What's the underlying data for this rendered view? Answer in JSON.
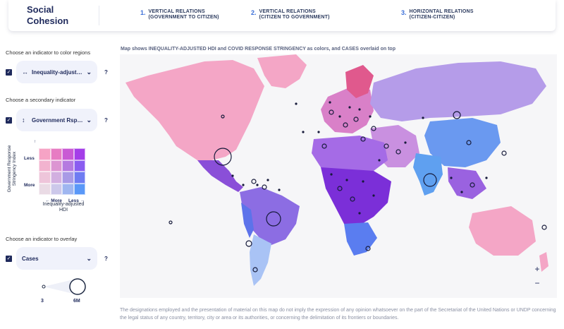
{
  "brand": {
    "line1": "Social",
    "line2": "Cohesion"
  },
  "nav_tabs": [
    {
      "num": "1.",
      "line1": "VERTICAL RELATIONS",
      "line2": "(GOVERNMENT TO CITIZEN)"
    },
    {
      "num": "2.",
      "line1": "VERTICAL RELATIONS",
      "line2": "(CITIZEN TO GOVERNMENT)"
    },
    {
      "num": "3.",
      "line1": "HORIZONTAL RELATIONS",
      "line2": "(CITIZEN-CITIZEN)"
    }
  ],
  "sidebar": {
    "color_prompt": "Choose an indicator to color regions",
    "color_select": {
      "icon": "↔",
      "label": "Inequality-adjust…",
      "help": "?"
    },
    "secondary_prompt": "Choose a secondary indicator",
    "secondary_select": {
      "icon": "↕",
      "label": "Government Rsp…",
      "help": "?"
    },
    "legend": {
      "y_title": "Government Response Stringency Index",
      "y_less": "Less",
      "y_more": "More",
      "x_more": "← More",
      "x_less": "Less →",
      "x_title": "Inequality-adjusted HDI",
      "colors": [
        [
          "#f6a3c5",
          "#e77cc3",
          "#c95ad4",
          "#a43ee8"
        ],
        [
          "#f2b3cf",
          "#dc95d2",
          "#b57ae0",
          "#8a5cf0"
        ],
        [
          "#eec5da",
          "#d2afe0",
          "#a89ae6",
          "#6f7cf2"
        ],
        [
          "#eadbe5",
          "#ccc8ea",
          "#9fb6f0",
          "#5a98f8"
        ]
      ]
    },
    "overlay_prompt": "Choose an indicator to overlay",
    "overlay_select": {
      "label": "Cases",
      "help": "?"
    },
    "size_legend": {
      "min": "3",
      "max": "6M"
    }
  },
  "map": {
    "title": "Map shows INEQUALITY-ADJUSTED HDI and COVID RESPONSE STRINGENCY as colors, and CASES overlaid on top",
    "zoom_in": "+",
    "zoom_out": "−"
  },
  "disclaimer": "The designations employed and the presentation of material on this map do not imply the expression of any opinion whatsoever on the part of the Secretariat of the United Nations or UNDP concerning the legal status of any country, territory, city or area or its authorities, or concerning the delimitation of its frontiers or boundaries.",
  "colors": {
    "nav_number": "#3b6fd8",
    "brand": "#1f2a5c",
    "pink": "#f6a3c5",
    "lavender": "#b9a3ea",
    "purple": "#7a3fd6",
    "blue": "#5a8ff0"
  }
}
